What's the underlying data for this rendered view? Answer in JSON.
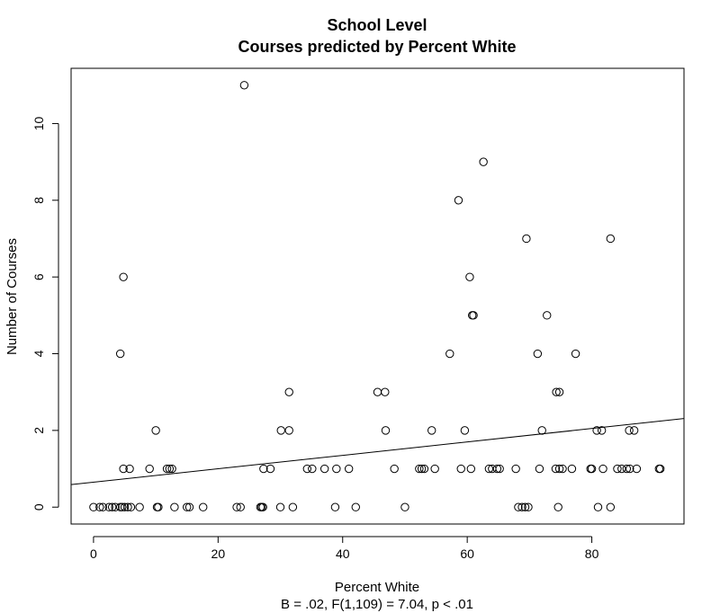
{
  "chart_data": {
    "type": "scatter",
    "title": "School Level",
    "subtitle": "Courses predicted by Percent White",
    "xlabel": "Percent White",
    "xlabel_note": "B = .02, F(1,109) = 7.04, p < .01",
    "ylabel": "Number of Courses",
    "xlim": [
      -3.6,
      94.8
    ],
    "ylim": [
      -0.44,
      11.44
    ],
    "x_ticks": [
      0,
      20,
      40,
      60,
      80
    ],
    "y_ticks": [
      0,
      2,
      4,
      6,
      8,
      10
    ],
    "grid": false,
    "marker": "open-circle",
    "regression_line": {
      "intercept": 0.65,
      "slope": 0.0175
    },
    "points": [
      {
        "x": 0.0,
        "y": 0
      },
      {
        "x": 1.0,
        "y": 0
      },
      {
        "x": 1.5,
        "y": 0
      },
      {
        "x": 2.5,
        "y": 0
      },
      {
        "x": 3.0,
        "y": 0
      },
      {
        "x": 3.5,
        "y": 0
      },
      {
        "x": 4.3,
        "y": 0
      },
      {
        "x": 4.6,
        "y": 0
      },
      {
        "x": 5.0,
        "y": 0
      },
      {
        "x": 5.5,
        "y": 0
      },
      {
        "x": 6.0,
        "y": 0
      },
      {
        "x": 7.4,
        "y": 0
      },
      {
        "x": 10.2,
        "y": 0
      },
      {
        "x": 10.4,
        "y": 0
      },
      {
        "x": 13.0,
        "y": 0
      },
      {
        "x": 15.0,
        "y": 0
      },
      {
        "x": 15.4,
        "y": 0
      },
      {
        "x": 17.6,
        "y": 0
      },
      {
        "x": 23.0,
        "y": 0
      },
      {
        "x": 23.6,
        "y": 0
      },
      {
        "x": 26.8,
        "y": 0
      },
      {
        "x": 27.0,
        "y": 0
      },
      {
        "x": 27.2,
        "y": 0
      },
      {
        "x": 30.0,
        "y": 0
      },
      {
        "x": 32.0,
        "y": 0
      },
      {
        "x": 38.8,
        "y": 0
      },
      {
        "x": 42.1,
        "y": 0
      },
      {
        "x": 50.0,
        "y": 0
      },
      {
        "x": 68.2,
        "y": 0
      },
      {
        "x": 68.8,
        "y": 0
      },
      {
        "x": 69.3,
        "y": 0
      },
      {
        "x": 69.8,
        "y": 0
      },
      {
        "x": 74.6,
        "y": 0
      },
      {
        "x": 81.0,
        "y": 0
      },
      {
        "x": 83.0,
        "y": 0
      },
      {
        "x": 4.8,
        "y": 1
      },
      {
        "x": 5.8,
        "y": 1
      },
      {
        "x": 9.0,
        "y": 1
      },
      {
        "x": 11.8,
        "y": 1
      },
      {
        "x": 12.2,
        "y": 1
      },
      {
        "x": 12.6,
        "y": 1
      },
      {
        "x": 27.3,
        "y": 1
      },
      {
        "x": 28.4,
        "y": 1
      },
      {
        "x": 34.3,
        "y": 1
      },
      {
        "x": 35.1,
        "y": 1
      },
      {
        "x": 37.1,
        "y": 1
      },
      {
        "x": 39.0,
        "y": 1
      },
      {
        "x": 41.0,
        "y": 1
      },
      {
        "x": 48.3,
        "y": 1
      },
      {
        "x": 52.3,
        "y": 1
      },
      {
        "x": 52.7,
        "y": 1
      },
      {
        "x": 53.1,
        "y": 1
      },
      {
        "x": 54.8,
        "y": 1
      },
      {
        "x": 59.0,
        "y": 1
      },
      {
        "x": 60.6,
        "y": 1
      },
      {
        "x": 63.5,
        "y": 1
      },
      {
        "x": 64.0,
        "y": 1
      },
      {
        "x": 64.8,
        "y": 1
      },
      {
        "x": 65.2,
        "y": 1
      },
      {
        "x": 67.8,
        "y": 1
      },
      {
        "x": 71.6,
        "y": 1
      },
      {
        "x": 74.2,
        "y": 1
      },
      {
        "x": 74.8,
        "y": 1
      },
      {
        "x": 75.3,
        "y": 1
      },
      {
        "x": 76.8,
        "y": 1
      },
      {
        "x": 79.8,
        "y": 1
      },
      {
        "x": 80.0,
        "y": 1
      },
      {
        "x": 81.8,
        "y": 1
      },
      {
        "x": 84.1,
        "y": 1
      },
      {
        "x": 84.8,
        "y": 1
      },
      {
        "x": 85.6,
        "y": 1
      },
      {
        "x": 86.1,
        "y": 1
      },
      {
        "x": 87.2,
        "y": 1
      },
      {
        "x": 90.8,
        "y": 1
      },
      {
        "x": 91.0,
        "y": 1
      },
      {
        "x": 10.0,
        "y": 2
      },
      {
        "x": 30.1,
        "y": 2
      },
      {
        "x": 31.4,
        "y": 2
      },
      {
        "x": 46.9,
        "y": 2
      },
      {
        "x": 54.3,
        "y": 2
      },
      {
        "x": 59.6,
        "y": 2
      },
      {
        "x": 72.0,
        "y": 2
      },
      {
        "x": 80.8,
        "y": 2
      },
      {
        "x": 81.6,
        "y": 2
      },
      {
        "x": 86.0,
        "y": 2
      },
      {
        "x": 86.8,
        "y": 2
      },
      {
        "x": 31.4,
        "y": 3
      },
      {
        "x": 45.6,
        "y": 3
      },
      {
        "x": 46.8,
        "y": 3
      },
      {
        "x": 74.3,
        "y": 3
      },
      {
        "x": 74.8,
        "y": 3
      },
      {
        "x": 4.3,
        "y": 4
      },
      {
        "x": 57.2,
        "y": 4
      },
      {
        "x": 71.3,
        "y": 4
      },
      {
        "x": 77.4,
        "y": 4
      },
      {
        "x": 60.8,
        "y": 5
      },
      {
        "x": 61.0,
        "y": 5
      },
      {
        "x": 72.8,
        "y": 5
      },
      {
        "x": 4.8,
        "y": 6
      },
      {
        "x": 60.4,
        "y": 6
      },
      {
        "x": 69.5,
        "y": 7
      },
      {
        "x": 83.0,
        "y": 7
      },
      {
        "x": 58.6,
        "y": 8
      },
      {
        "x": 62.6,
        "y": 9
      },
      {
        "x": 24.2,
        "y": 11
      }
    ]
  }
}
